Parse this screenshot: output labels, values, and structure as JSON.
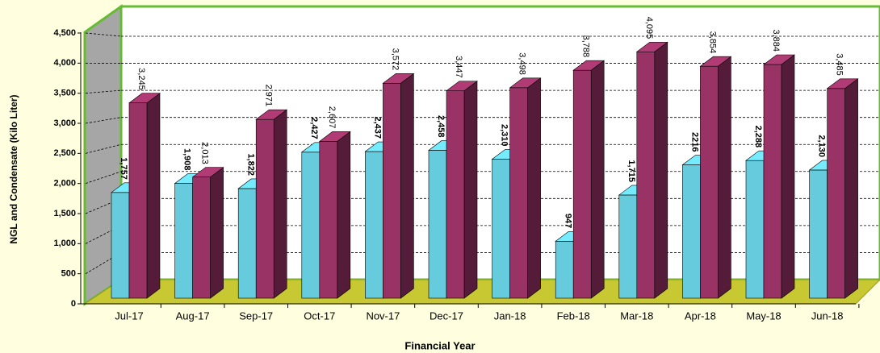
{
  "chart_data": {
    "type": "bar3d",
    "x_label": "Financial Year",
    "y_label": "NGL and Condensate (Kilo Liter)",
    "categories": [
      "Jul-17",
      "Aug-17",
      "Sep-17",
      "Oct-17",
      "Nov-17",
      "Dec-17",
      "Jan-18",
      "Feb-18",
      "Mar-18",
      "Apr-18",
      "May-18",
      "Jun-18"
    ],
    "series": [
      {
        "color": "#66ccdd",
        "values": [
          1757,
          1908,
          1822,
          2427,
          2437,
          2458,
          2310,
          947,
          1715,
          2216,
          2288,
          2130
        ],
        "value_labels": [
          "1,757",
          "1,908",
          "1,822",
          "2,427",
          "2,437",
          "2,458",
          "2,310",
          "947",
          "1,715",
          "2216",
          "2,288",
          "2,130"
        ]
      },
      {
        "color": "#993366",
        "values": [
          3245,
          2013,
          2971,
          2607,
          3572,
          3447,
          3498,
          3788,
          4095,
          3854,
          3884,
          3485
        ],
        "value_labels": [
          "3,245",
          "2,013",
          "2,971",
          "2,607",
          "3,572",
          "3,447",
          "3,498",
          "3,788",
          "4,095",
          "3,854",
          "3,884",
          "3,485"
        ]
      }
    ],
    "ylim": [
      0,
      4500
    ],
    "yticks": [
      0,
      500,
      {
        "value": 1000,
        "label": "1,000"
      },
      {
        "value": 1500,
        "label": "1,500"
      },
      {
        "value": 2000,
        "label": "2,000"
      },
      {
        "value": 2500,
        "label": "2,500"
      },
      {
        "value": 3000,
        "label": "3,000"
      },
      {
        "value": 3500,
        "label": "3,500"
      },
      {
        "value": 4000,
        "label": "4,000"
      },
      {
        "value": 4500,
        "label": "4,500"
      }
    ],
    "grid": true
  }
}
